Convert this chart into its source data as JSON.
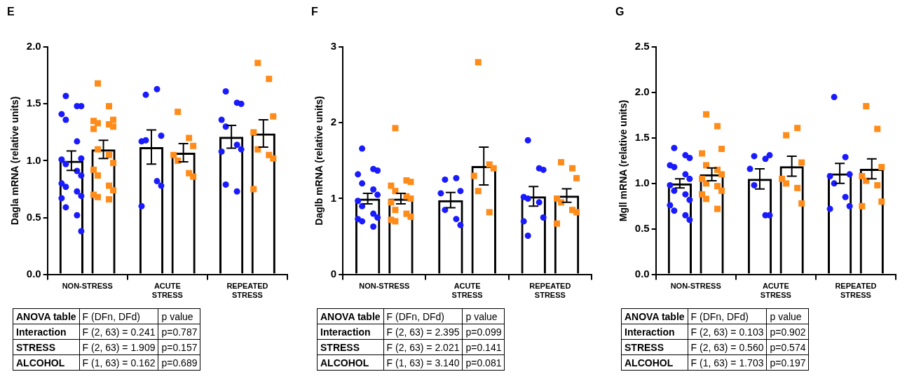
{
  "chart_data": [
    {
      "type": "bar",
      "title": "E",
      "ylabel": "Dagla mRNA (relative units)",
      "categories": [
        "NON-STRESS",
        "ACUTE STRESS",
        "REPEATED STRESS"
      ],
      "ylim": [
        0,
        2
      ],
      "yticks": [
        {
          "value": 0,
          "label": "0.0"
        },
        {
          "value": 0.5,
          "label": "0.5"
        },
        {
          "value": 1,
          "label": "1.0"
        },
        {
          "value": 1.5,
          "label": "1.5"
        },
        {
          "value": 2,
          "label": "2.0"
        }
      ],
      "series": [
        {
          "type": "bar",
          "color": "#000000",
          "values": [
            1.0,
            1.12,
            1.21
          ],
          "errors": [
            0.085,
            0.15,
            0.1
          ]
        },
        {
          "type": "bar",
          "color": "#000000",
          "values": [
            1.1,
            1.07,
            1.24
          ],
          "errors": [
            0.08,
            0.08,
            0.12
          ]
        },
        {
          "type": "scatter",
          "marker": "circle",
          "color": "#1a1aff",
          "x": [
            "NON-STRESS",
            "NON-STRESS",
            "NON-STRESS",
            "NON-STRESS",
            "NON-STRESS",
            "NON-STRESS",
            "NON-STRESS",
            "NON-STRESS",
            "NON-STRESS",
            "NON-STRESS",
            "NON-STRESS",
            "NON-STRESS",
            "NON-STRESS",
            "NON-STRESS",
            "NON-STRESS",
            "NON-STRESS",
            "NON-STRESS",
            "NON-STRESS",
            "NON-STRESS",
            "ACUTE STRESS",
            "ACUTE STRESS",
            "ACUTE STRESS",
            "ACUTE STRESS",
            "ACUTE STRESS",
            "ACUTE STRESS",
            "ACUTE STRESS",
            "ACUTE STRESS",
            "REPEATED STRESS",
            "REPEATED STRESS",
            "REPEATED STRESS",
            "REPEATED STRESS",
            "REPEATED STRESS",
            "REPEATED STRESS",
            "REPEATED STRESS",
            "REPEATED STRESS",
            "REPEATED STRESS",
            "REPEATED STRESS"
          ],
          "values": [
            1.57,
            1.48,
            1.48,
            1.41,
            1.36,
            1.17,
            1.02,
            1.01,
            0.97,
            0.91,
            0.87,
            0.8,
            0.77,
            0.73,
            0.69,
            0.67,
            0.59,
            0.52,
            0.38,
            1.58,
            1.63,
            1.22,
            1.17,
            1.18,
            0.82,
            0.78,
            0.6,
            1.61,
            1.51,
            1.5,
            1.36,
            1.3,
            1.14,
            1.1,
            1.08,
            0.79,
            0.73
          ]
        },
        {
          "type": "scatter",
          "marker": "square",
          "color": "#ff8c1a",
          "x": [
            "NON-STRESS",
            "NON-STRESS",
            "NON-STRESS",
            "NON-STRESS",
            "NON-STRESS",
            "NON-STRESS",
            "NON-STRESS",
            "NON-STRESS",
            "NON-STRESS",
            "NON-STRESS",
            "NON-STRESS",
            "NON-STRESS",
            "NON-STRESS",
            "NON-STRESS",
            "NON-STRESS",
            "NON-STRESS",
            "NON-STRESS",
            "NON-STRESS",
            "ACUTE STRESS",
            "ACUTE STRESS",
            "ACUTE STRESS",
            "ACUTE STRESS",
            "ACUTE STRESS",
            "ACUTE STRESS",
            "ACUTE STRESS",
            "REPEATED STRESS",
            "REPEATED STRESS",
            "REPEATED STRESS",
            "REPEATED STRESS",
            "REPEATED STRESS",
            "REPEATED STRESS",
            "REPEATED STRESS",
            "REPEATED STRESS"
          ],
          "values": [
            1.68,
            1.48,
            1.36,
            1.35,
            1.33,
            1.32,
            1.3,
            1.28,
            1.1,
            1.05,
            0.98,
            0.92,
            0.87,
            0.78,
            0.74,
            0.7,
            0.68,
            0.66,
            1.43,
            1.2,
            1.13,
            1.05,
            1.0,
            0.89,
            0.86,
            1.86,
            1.72,
            1.39,
            1.25,
            1.1,
            1.05,
            1.02,
            0.75
          ]
        }
      ],
      "annotations": [
        "ANOVA table",
        "F (DFn, DFd)",
        "p value",
        "Interaction",
        "F (2, 63) = 0.241",
        "p=0.787",
        "STRESS",
        "F (2, 63) = 1.909",
        "p=0.157",
        "ALCOHOL",
        "F (1, 63) = 0.162",
        "p=0.689"
      ]
    },
    {
      "type": "bar",
      "title": "F",
      "ylabel": "Daglb mRNA (relative units)",
      "categories": [
        "NON-STRESS",
        "ACUTE STRESS",
        "REPEATED STRESS"
      ],
      "ylim": [
        0,
        3
      ],
      "yticks": [
        0,
        1,
        2,
        3
      ],
      "series": [
        {
          "type": "bar",
          "color": "#000000",
          "values": [
            1.0,
            0.98,
            1.03
          ],
          "errors": [
            0.07,
            0.1,
            0.13
          ]
        },
        {
          "type": "bar",
          "color": "#000000",
          "values": [
            1.0,
            1.43,
            1.04
          ],
          "errors": [
            0.07,
            0.25,
            0.09
          ]
        },
        {
          "type": "scatter",
          "marker": "circle",
          "color": "#1a1aff",
          "x": [
            "NON-STRESS",
            "NON-STRESS",
            "NON-STRESS",
            "NON-STRESS",
            "NON-STRESS",
            "NON-STRESS",
            "NON-STRESS",
            "NON-STRESS",
            "NON-STRESS",
            "NON-STRESS",
            "NON-STRESS",
            "NON-STRESS",
            "NON-STRESS",
            "NON-STRESS",
            "ACUTE STRESS",
            "ACUTE STRESS",
            "ACUTE STRESS",
            "ACUTE STRESS",
            "ACUTE STRESS",
            "ACUTE STRESS",
            "ACUTE STRESS",
            "REPEATED STRESS",
            "REPEATED STRESS",
            "REPEATED STRESS",
            "REPEATED STRESS",
            "REPEATED STRESS",
            "REPEATED STRESS",
            "REPEATED STRESS",
            "REPEATED STRESS",
            "REPEATED STRESS"
          ],
          "values": [
            1.66,
            1.39,
            1.37,
            1.32,
            1.2,
            1.12,
            1.05,
            0.97,
            0.9,
            0.8,
            0.75,
            0.73,
            0.7,
            0.63,
            1.25,
            1.27,
            1.1,
            1.07,
            0.85,
            0.73,
            0.65,
            1.77,
            1.4,
            1.38,
            1.02,
            1.0,
            0.95,
            0.75,
            0.7,
            0.51
          ]
        },
        {
          "type": "scatter",
          "marker": "square",
          "color": "#ff8c1a",
          "x": [
            "NON-STRESS",
            "NON-STRESS",
            "NON-STRESS",
            "NON-STRESS",
            "NON-STRESS",
            "NON-STRESS",
            "NON-STRESS",
            "NON-STRESS",
            "NON-STRESS",
            "NON-STRESS",
            "NON-STRESS",
            "NON-STRESS",
            "NON-STRESS",
            "ACUTE STRESS",
            "ACUTE STRESS",
            "ACUTE STRESS",
            "ACUTE STRESS",
            "ACUTE STRESS",
            "ACUTE STRESS",
            "REPEATED STRESS",
            "REPEATED STRESS",
            "REPEATED STRESS",
            "REPEATED STRESS",
            "REPEATED STRESS",
            "REPEATED STRESS",
            "REPEATED STRESS",
            "REPEATED STRESS"
          ],
          "values": [
            1.93,
            1.24,
            1.22,
            1.17,
            1.1,
            1.03,
            1.0,
            0.95,
            0.85,
            0.8,
            0.76,
            0.72,
            0.7,
            2.8,
            1.45,
            1.4,
            1.3,
            1.1,
            0.82,
            1.48,
            1.4,
            1.27,
            1.0,
            0.95,
            0.85,
            0.82,
            0.67
          ]
        }
      ],
      "annotations": [
        "ANOVA table",
        "F (DFn, DFd)",
        "p value",
        "Interaction",
        "F (2, 63) = 2.395",
        "p=0.099",
        "STRESS",
        "F (2, 63) = 2.021",
        "p=0.141",
        "ALCOHOL",
        "F (1, 63) = 3.140",
        "p=0.081"
      ]
    },
    {
      "type": "bar",
      "title": "G",
      "ylabel": "Mgll mRNA (relative units)",
      "categories": [
        "NON-STRESS",
        "ACUTE STRESS",
        "REPEATED STRESS"
      ],
      "ylim": [
        0,
        2.5
      ],
      "yticks": [
        {
          "value": 0,
          "label": "0.0"
        },
        {
          "value": 0.5,
          "label": "0.5"
        },
        {
          "value": 1,
          "label": "1.0"
        },
        {
          "value": 1.5,
          "label": "1.5"
        },
        {
          "value": 2,
          "label": "2.0"
        },
        {
          "value": 2.5,
          "label": "2.5"
        }
      ],
      "series": [
        {
          "type": "bar",
          "color": "#000000",
          "values": [
            1.0,
            1.05,
            1.11
          ],
          "errors": [
            0.05,
            0.11,
            0.11
          ]
        },
        {
          "type": "bar",
          "color": "#000000",
          "values": [
            1.1,
            1.19,
            1.16
          ],
          "errors": [
            0.07,
            0.11,
            0.11
          ]
        },
        {
          "type": "scatter",
          "marker": "circle",
          "color": "#1a1aff",
          "x": [
            "NON-STRESS",
            "NON-STRESS",
            "NON-STRESS",
            "NON-STRESS",
            "NON-STRESS",
            "NON-STRESS",
            "NON-STRESS",
            "NON-STRESS",
            "NON-STRESS",
            "NON-STRESS",
            "NON-STRESS",
            "NON-STRESS",
            "NON-STRESS",
            "NON-STRESS",
            "NON-STRESS",
            "ACUTE STRESS",
            "ACUTE STRESS",
            "ACUTE STRESS",
            "ACUTE STRESS",
            "ACUTE STRESS",
            "ACUTE STRESS",
            "ACUTE STRESS",
            "REPEATED STRESS",
            "REPEATED STRESS",
            "REPEATED STRESS",
            "REPEATED STRESS",
            "REPEATED STRESS",
            "REPEATED STRESS",
            "REPEATED STRESS",
            "REPEATED STRESS"
          ],
          "values": [
            1.39,
            1.31,
            1.28,
            1.2,
            1.18,
            1.1,
            1.05,
            0.98,
            0.92,
            0.88,
            0.82,
            0.76,
            0.7,
            0.65,
            0.6,
            1.3,
            1.27,
            1.31,
            1.16,
            0.98,
            0.65,
            0.65,
            1.95,
            1.29,
            1.1,
            1.08,
            1.0,
            0.85,
            0.75,
            0.72
          ]
        },
        {
          "type": "scatter",
          "marker": "square",
          "color": "#ff8c1a",
          "x": [
            "NON-STRESS",
            "NON-STRESS",
            "NON-STRESS",
            "NON-STRESS",
            "NON-STRESS",
            "NON-STRESS",
            "NON-STRESS",
            "NON-STRESS",
            "NON-STRESS",
            "NON-STRESS",
            "NON-STRESS",
            "NON-STRESS",
            "NON-STRESS",
            "NON-STRESS",
            "ACUTE STRESS",
            "ACUTE STRESS",
            "ACUTE STRESS",
            "ACUTE STRESS",
            "ACUTE STRESS",
            "ACUTE STRESS",
            "ACUTE STRESS",
            "REPEATED STRESS",
            "REPEATED STRESS",
            "REPEATED STRESS",
            "REPEATED STRESS",
            "REPEATED STRESS",
            "REPEATED STRESS",
            "REPEATED STRESS",
            "REPEATED STRESS"
          ],
          "values": [
            1.76,
            1.63,
            1.38,
            1.33,
            1.2,
            1.15,
            1.1,
            1.05,
            1.0,
            0.97,
            0.92,
            0.88,
            0.83,
            0.72,
            1.53,
            1.61,
            1.23,
            1.05,
            1.0,
            0.95,
            0.78,
            1.85,
            1.6,
            1.18,
            1.08,
            1.03,
            0.98,
            0.8,
            0.75
          ]
        }
      ],
      "annotations": [
        "ANOVA table",
        "F (DFn, DFd)",
        "p value",
        "Interaction",
        "F (2, 63) = 0.103",
        "p=0.902",
        "STRESS",
        "F (2, 63) = 0.560",
        "p=0.574",
        "ALCOHOL",
        "F (1, 63) = 1.703",
        "p=0.197"
      ]
    }
  ]
}
